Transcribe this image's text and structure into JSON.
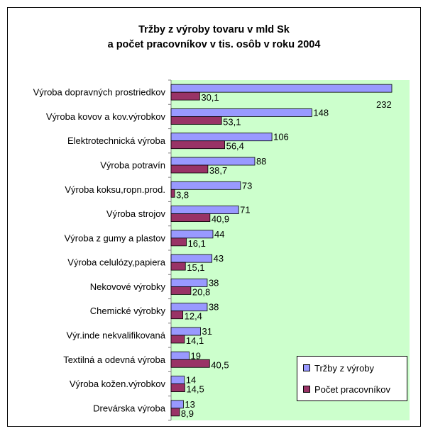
{
  "chart_data": {
    "type": "bar",
    "orientation": "horizontal",
    "title_lines": [
      "Tržby z výroby tovaru v mld Sk",
      "a počet pracovníkov v tis. osôb v roku 2004"
    ],
    "categories": [
      "Výroba dopravných prostriedkov",
      "Výroba kovov a kov.výrobkov",
      "Elektrotechnická výroba",
      "Výroba potravín",
      "Výroba koksu,ropn.prod.",
      "Výroba strojov",
      "Výroba z gumy a plastov",
      "Výroba celulózy,papiera",
      "Nekovové výrobky",
      "Chemické výrobky",
      "Výr.inde nekvalifikovaná",
      "Textilná a odevná výroba",
      "Výroba kožen.výrobkov",
      "Drevárska výroba"
    ],
    "series": [
      {
        "name": "Tržby z výroby",
        "color": "#9999ff",
        "values": [
          232,
          148,
          106,
          88,
          73,
          71,
          44,
          43,
          38,
          38,
          31,
          19,
          14,
          13
        ],
        "labels": [
          "232",
          "148",
          "106",
          "88",
          "73",
          "71",
          "44",
          "43",
          "38",
          "38",
          "31",
          "19",
          "14",
          "13"
        ]
      },
      {
        "name": "Počet pracovníkov",
        "color": "#993366",
        "values": [
          30.1,
          53.1,
          56.4,
          38.7,
          3.8,
          40.9,
          16.1,
          15.1,
          20.8,
          12.4,
          14.1,
          40.5,
          14.5,
          8.9
        ],
        "labels": [
          "30,1",
          "53,1",
          "56,4",
          "38,7",
          "3,8",
          "40,9",
          "16,1",
          "15,1",
          "20,8",
          "12,4",
          "14,1",
          "40,5",
          "14,5",
          "8,9"
        ]
      }
    ],
    "xlim": [
      0,
      240
    ],
    "plot_background": "#ccffcc",
    "grid": false,
    "legend": "bottom-right"
  }
}
